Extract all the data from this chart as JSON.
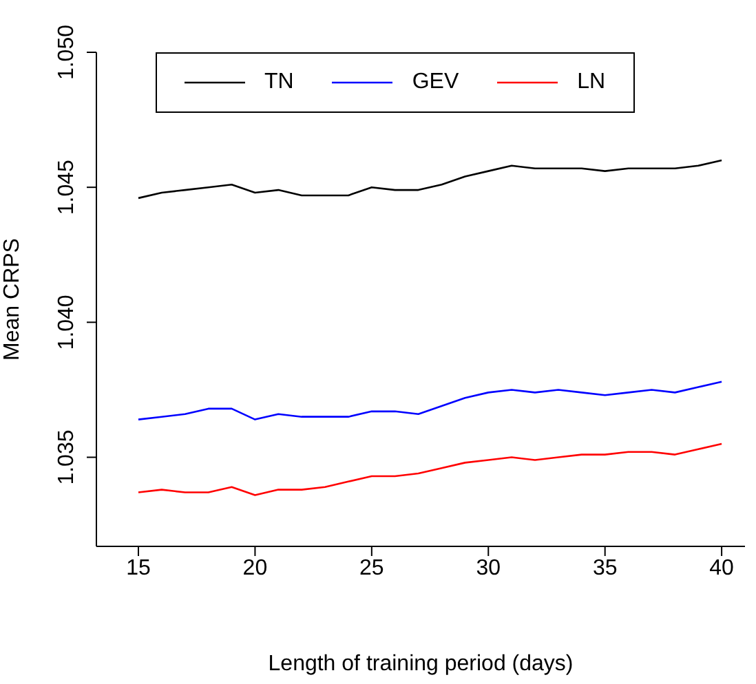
{
  "chart_data": {
    "type": "line",
    "xlabel": "Length of training period (days)",
    "ylabel": "Mean CRPS",
    "x": [
      15,
      16,
      17,
      18,
      19,
      20,
      21,
      22,
      23,
      24,
      25,
      26,
      27,
      28,
      29,
      30,
      31,
      32,
      33,
      34,
      35,
      36,
      37,
      38,
      39,
      40
    ],
    "series": [
      {
        "name": "TN",
        "color": "#000000",
        "values": [
          1.0446,
          1.0448,
          1.0449,
          1.045,
          1.0451,
          1.0448,
          1.0449,
          1.0447,
          1.0447,
          1.0447,
          1.045,
          1.0449,
          1.0449,
          1.0451,
          1.0454,
          1.0456,
          1.0458,
          1.0457,
          1.0457,
          1.0457,
          1.0456,
          1.0457,
          1.0457,
          1.0457,
          1.0458,
          1.046
        ]
      },
      {
        "name": "GEV",
        "color": "#0000ff",
        "values": [
          1.0364,
          1.0365,
          1.0366,
          1.0368,
          1.0368,
          1.0364,
          1.0366,
          1.0365,
          1.0365,
          1.0365,
          1.0367,
          1.0367,
          1.0366,
          1.0369,
          1.0372,
          1.0374,
          1.0375,
          1.0374,
          1.0375,
          1.0374,
          1.0373,
          1.0374,
          1.0375,
          1.0374,
          1.0376,
          1.0378
        ]
      },
      {
        "name": "LN",
        "color": "#ff0000",
        "values": [
          1.0337,
          1.0338,
          1.0337,
          1.0337,
          1.0339,
          1.0336,
          1.0338,
          1.0338,
          1.0339,
          1.0341,
          1.0343,
          1.0343,
          1.0344,
          1.0346,
          1.0348,
          1.0349,
          1.035,
          1.0349,
          1.035,
          1.0351,
          1.0351,
          1.0352,
          1.0352,
          1.0351,
          1.0353,
          1.0355
        ]
      }
    ],
    "xlim": [
      13.2,
      41
    ],
    "xticks": [
      15,
      20,
      25,
      30,
      35,
      40
    ],
    "ylim": [
      1.0317,
      1.05
    ],
    "yticks": [
      {
        "value": 1.035,
        "label": "1.035"
      },
      {
        "value": 1.04,
        "label": "1.040"
      },
      {
        "value": 1.045,
        "label": "1.045"
      },
      {
        "value": 1.05,
        "label": "1.050"
      }
    ],
    "grid": false,
    "legend": "top",
    "marker": "none",
    "line_style": "solid"
  }
}
